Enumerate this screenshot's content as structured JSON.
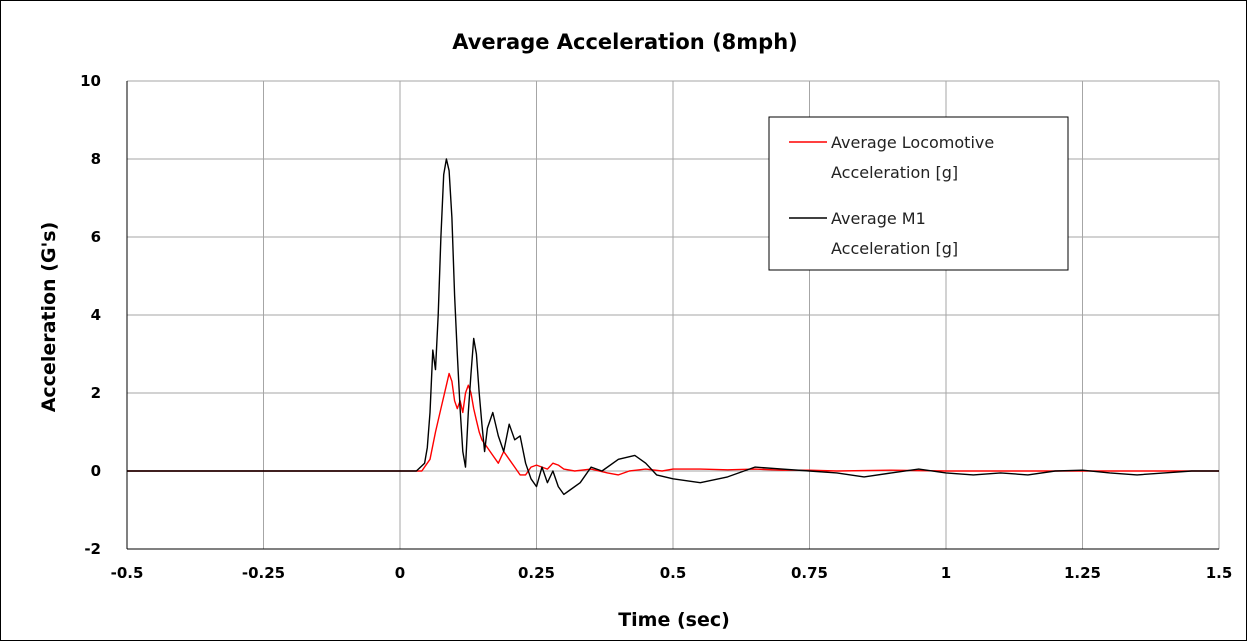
{
  "chart_data": {
    "type": "line",
    "title": "Average Acceleration (8mph)",
    "xlabel": "Time (sec)",
    "ylabel": "Acceleration (G's)",
    "xlim": [
      -0.5,
      1.5
    ],
    "ylim": [
      -2,
      10
    ],
    "x_ticks": [
      -0.5,
      -0.25,
      0,
      0.25,
      0.5,
      0.75,
      1,
      1.25,
      1.5
    ],
    "x_tick_labels": [
      "-0.5",
      "-0.25",
      "0",
      "0.25",
      "0.5",
      "0.75",
      "1",
      "1.25",
      "1.5"
    ],
    "y_ticks": [
      -2,
      0,
      2,
      4,
      6,
      8,
      10
    ],
    "y_tick_labels": [
      "-2",
      "0",
      "2",
      "4",
      "6",
      "8",
      "10"
    ],
    "grid": true,
    "legend_position": "top-right",
    "series": [
      {
        "name": "Average Locomotive Acceleration [g]",
        "name_lines": [
          "Average Locomotive",
          "Acceleration [g]"
        ],
        "color": "#ff0000",
        "x": [
          -0.5,
          0,
          0.04,
          0.055,
          0.065,
          0.075,
          0.085,
          0.09,
          0.095,
          0.1,
          0.105,
          0.11,
          0.115,
          0.12,
          0.125,
          0.13,
          0.135,
          0.14,
          0.145,
          0.15,
          0.16,
          0.17,
          0.18,
          0.19,
          0.2,
          0.21,
          0.22,
          0.23,
          0.24,
          0.25,
          0.26,
          0.27,
          0.28,
          0.29,
          0.3,
          0.32,
          0.35,
          0.38,
          0.4,
          0.42,
          0.45,
          0.48,
          0.5,
          0.55,
          0.6,
          0.65,
          0.7,
          0.75,
          0.8,
          0.9,
          1.0,
          1.1,
          1.2,
          1.3,
          1.4,
          1.5
        ],
        "y": [
          0,
          0,
          0,
          0.3,
          1.0,
          1.6,
          2.2,
          2.5,
          2.3,
          1.8,
          1.6,
          1.8,
          1.5,
          2.0,
          2.2,
          2.0,
          1.6,
          1.3,
          1.0,
          0.8,
          0.6,
          0.4,
          0.2,
          0.5,
          0.3,
          0.1,
          -0.1,
          -0.1,
          0.1,
          0.15,
          0.1,
          0.05,
          0.2,
          0.15,
          0.05,
          0.0,
          0.05,
          -0.05,
          -0.1,
          0.0,
          0.05,
          0.0,
          0.05,
          0.05,
          0.03,
          0.05,
          0.02,
          0.02,
          0.0,
          0.02,
          0.0,
          0.0,
          0.0,
          0.0,
          0.0,
          0.0
        ]
      },
      {
        "name": "Average M1 Acceleration [g]",
        "name_lines": [
          "Average M1",
          "Acceleration [g]"
        ],
        "color": "#000000",
        "x": [
          -0.5,
          0,
          0.03,
          0.045,
          0.05,
          0.055,
          0.06,
          0.065,
          0.07,
          0.075,
          0.08,
          0.085,
          0.09,
          0.095,
          0.1,
          0.105,
          0.11,
          0.115,
          0.12,
          0.125,
          0.13,
          0.135,
          0.14,
          0.145,
          0.15,
          0.155,
          0.16,
          0.17,
          0.18,
          0.19,
          0.2,
          0.21,
          0.22,
          0.23,
          0.24,
          0.25,
          0.26,
          0.27,
          0.28,
          0.29,
          0.3,
          0.31,
          0.33,
          0.35,
          0.37,
          0.4,
          0.43,
          0.45,
          0.47,
          0.5,
          0.55,
          0.6,
          0.65,
          0.7,
          0.75,
          0.8,
          0.85,
          0.9,
          0.95,
          1.0,
          1.05,
          1.1,
          1.15,
          1.2,
          1.25,
          1.3,
          1.35,
          1.4,
          1.45,
          1.5
        ],
        "y": [
          0,
          0,
          0,
          0.2,
          0.6,
          1.5,
          3.1,
          2.6,
          4.0,
          6.0,
          7.6,
          8.0,
          7.7,
          6.5,
          4.5,
          3.0,
          1.6,
          0.5,
          0.1,
          1.5,
          2.5,
          3.4,
          3.0,
          2.0,
          1.2,
          0.5,
          1.1,
          1.5,
          0.9,
          0.5,
          1.2,
          0.8,
          0.9,
          0.2,
          -0.2,
          -0.4,
          0.1,
          -0.3,
          0.0,
          -0.4,
          -0.6,
          -0.5,
          -0.3,
          0.1,
          0.0,
          0.3,
          0.4,
          0.2,
          -0.1,
          -0.2,
          -0.3,
          -0.15,
          0.1,
          0.05,
          0.0,
          -0.05,
          -0.15,
          -0.05,
          0.05,
          -0.05,
          -0.1,
          -0.05,
          -0.1,
          0.0,
          0.02,
          -0.05,
          -0.1,
          -0.05,
          0.0,
          0.0
        ]
      }
    ]
  }
}
